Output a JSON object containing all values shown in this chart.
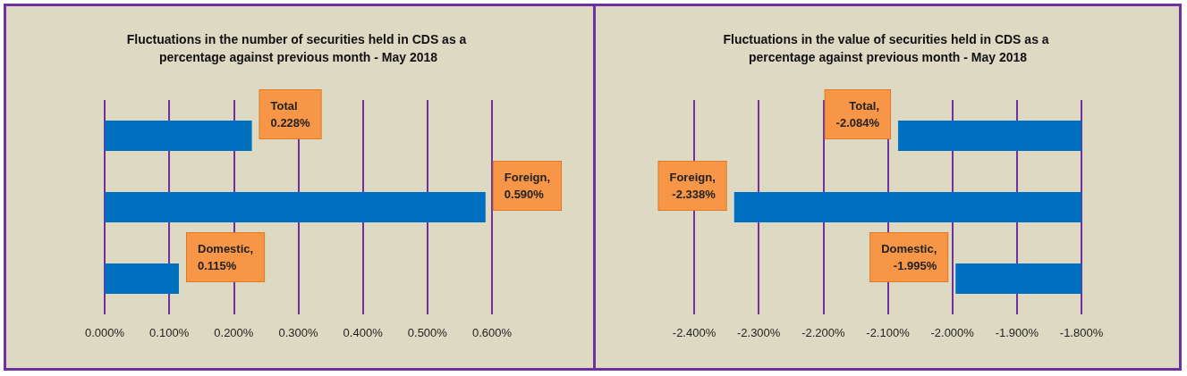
{
  "chart_data": [
    {
      "type": "bar",
      "orientation": "horizontal",
      "title": "Fluctuations in the number of securities held in CDS as a percentage against previous month - May 2018",
      "categories": [
        null,
        null,
        null
      ],
      "values": [
        0.228,
        0.59,
        0.115
      ],
      "color": "#0070c0",
      "value_labels": [
        "Total\n0.228%",
        "Foreign,\n0.590%",
        "Domestic,\n0.115%"
      ],
      "xlim": [
        0,
        0.6
      ],
      "xticks": [
        {
          "value": 0,
          "label": "0.000%"
        },
        {
          "value": 0.1,
          "label": "0.100%"
        },
        {
          "value": 0.2,
          "label": "0.200%"
        },
        {
          "value": 0.3,
          "label": "0.300%"
        },
        {
          "value": 0.4,
          "label": "0.400%"
        },
        {
          "value": 0.5,
          "label": "0.500%"
        },
        {
          "value": 0.6,
          "label": "0.600%"
        }
      ],
      "grid": "x"
    },
    {
      "type": "bar",
      "orientation": "horizontal",
      "title": "Fluctuations in the value of securities held in CDS as a percentage against previous month - May 2018",
      "categories": [
        null,
        null,
        null
      ],
      "values": [
        -2.084,
        -2.338,
        -1.995
      ],
      "color": "#0070c0",
      "value_labels": [
        "Total,\n-2.084%",
        "Foreign,\n-2.338%",
        "Domestic,\n-1.995%"
      ],
      "xlim": [
        -2.4,
        -1.8
      ],
      "xticks": [
        {
          "value": -2.4,
          "label": "-2.400%"
        },
        {
          "value": -2.3,
          "label": "-2.300%"
        },
        {
          "value": -2.2,
          "label": "-2.200%"
        },
        {
          "value": -2.1,
          "label": "-2.100%"
        },
        {
          "value": -2.0,
          "label": "-2.000%"
        },
        {
          "value": -1.9,
          "label": "-1.900%"
        },
        {
          "value": -1.8,
          "label": "-1.800%"
        }
      ],
      "grid": "x"
    }
  ]
}
